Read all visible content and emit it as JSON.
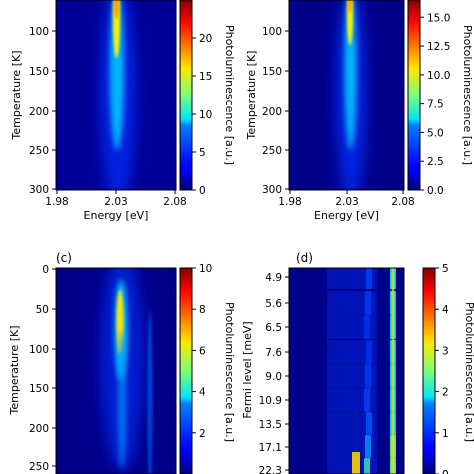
{
  "colors": {
    "colormap": "jet",
    "background": "#ffffff"
  },
  "chart_data": [
    {
      "type": "heatmap",
      "panel": "a",
      "title": "",
      "xlabel": "Energy [eV]",
      "ylabel": "Temperature [K]",
      "colorbar_label": "Photoluminescence [a.u.]",
      "x_ticks": [
        "1.98",
        "2.03",
        "2.08"
      ],
      "xlim": [
        1.98,
        2.08
      ],
      "y_ticks": [
        "100",
        "150",
        "200",
        "250",
        "300"
      ],
      "ylim": [
        300,
        60
      ],
      "colorbar_ticks": [
        "0",
        "5",
        "10",
        "15",
        "20"
      ],
      "vmin": 0,
      "vmax": 25,
      "feature": {
        "description_points": [
          {
            "temperature": 60,
            "energy": 2.03,
            "intensity": 22
          },
          {
            "temperature": 100,
            "energy": 2.031,
            "intensity": 14
          },
          {
            "temperature": 150,
            "energy": 2.032,
            "intensity": 8
          },
          {
            "temperature": 200,
            "energy": 2.033,
            "intensity": 5
          },
          {
            "temperature": 250,
            "energy": 2.035,
            "intensity": 3
          },
          {
            "temperature": 300,
            "energy": 2.036,
            "intensity": 2
          }
        ]
      }
    },
    {
      "type": "heatmap",
      "panel": "b",
      "title": "",
      "xlabel": "Energy [eV]",
      "ylabel": "Temperature [K]",
      "colorbar_label": "Photoluminescence [a.u.]",
      "x_ticks": [
        "1.98",
        "2.03",
        "2.08"
      ],
      "xlim": [
        1.98,
        2.08
      ],
      "y_ticks": [
        "100",
        "150",
        "200",
        "250",
        "300"
      ],
      "ylim": [
        300,
        60
      ],
      "colorbar_ticks": [
        "0.0",
        "2.5",
        "5.0",
        "7.5",
        "10.0",
        "12.5",
        "15.0"
      ],
      "vmin": 0,
      "vmax": 16.5,
      "feature": {
        "description_points": [
          {
            "temperature": 60,
            "energy": 2.033,
            "intensity": 15
          },
          {
            "temperature": 100,
            "energy": 2.034,
            "intensity": 9
          },
          {
            "temperature": 150,
            "energy": 2.035,
            "intensity": 5
          },
          {
            "temperature": 200,
            "energy": 2.036,
            "intensity": 3
          },
          {
            "temperature": 250,
            "energy": 2.037,
            "intensity": 2
          },
          {
            "temperature": 300,
            "energy": 2.038,
            "intensity": 1.5
          }
        ]
      }
    },
    {
      "type": "heatmap",
      "panel": "c",
      "title": "",
      "xlabel": "",
      "ylabel": "Temperature [K]",
      "colorbar_label": "Photoluminescence [a.u.]",
      "x_ticks": [],
      "y_ticks": [
        "0",
        "50",
        "100",
        "150",
        "200",
        "250"
      ],
      "ylim": [
        0,
        270
      ],
      "colorbar_ticks": [
        "2",
        "4",
        "6",
        "8",
        "10"
      ],
      "vmin": 0,
      "vmax": 10,
      "feature": {
        "description_points": [
          {
            "temperature": 30,
            "position": 0.58,
            "intensity": 9
          },
          {
            "temperature": 70,
            "position": 0.56,
            "intensity": 6
          },
          {
            "temperature": 120,
            "position": 0.55,
            "intensity": 3
          },
          {
            "temperature": 200,
            "position": 0.54,
            "intensity": 1.5
          }
        ]
      }
    },
    {
      "type": "heatmap",
      "panel": "d",
      "title": "",
      "xlabel": "",
      "ylabel": "Fermi level [meV]",
      "colorbar_label": "Photoluminescence [a.u.]",
      "x_ticks": [],
      "y_ticks": [
        "4.9",
        "5.6",
        "6.5",
        "7.6",
        "9.0",
        "10.9",
        "13.5",
        "17.1",
        "22.3"
      ],
      "colorbar_ticks": [
        "0",
        "1",
        "2",
        "3",
        "4",
        "5"
      ],
      "vmin": 0,
      "vmax": 5,
      "feature": {
        "description_points": [
          {
            "fermi_level": "4.9",
            "intensity": 1.8
          },
          {
            "fermi_level": "9.0",
            "intensity": 1.5
          },
          {
            "fermi_level": "13.5",
            "intensity": 2.5
          },
          {
            "fermi_level": "22.3",
            "intensity": 4
          }
        ]
      }
    }
  ],
  "panels": {
    "a": {
      "label": ""
    },
    "b": {
      "label": ""
    },
    "c": {
      "label": "(c)"
    },
    "d": {
      "label": "(d)"
    }
  }
}
